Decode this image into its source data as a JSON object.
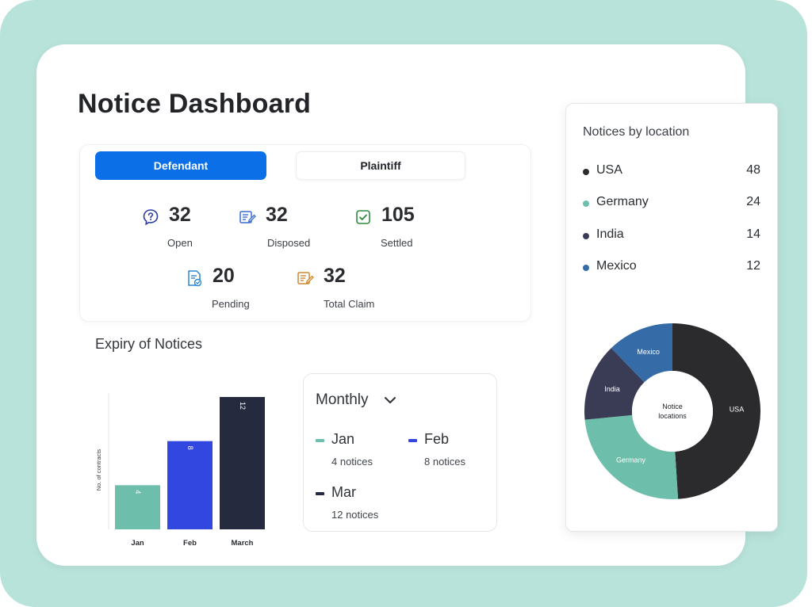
{
  "page": {
    "title": "Notice Dashboard"
  },
  "tabs": [
    {
      "label": "Defendant",
      "active": true
    },
    {
      "label": "Plaintiff",
      "active": false
    }
  ],
  "stats": [
    {
      "value": "32",
      "label": "Open",
      "icon": "question-bubble-icon",
      "color": "#2b3ea0"
    },
    {
      "value": "32",
      "label": "Disposed",
      "icon": "edit-document-icon",
      "color": "#3b6fd0"
    },
    {
      "value": "105",
      "label": "Settled",
      "icon": "check-square-icon",
      "color": "#2e8b3c"
    },
    {
      "value": "20",
      "label": "Pending",
      "icon": "document-check-icon",
      "color": "#2a86d1"
    },
    {
      "value": "32",
      "label": "Total Claim",
      "icon": "edit-note-icon",
      "color": "#d08a2e"
    }
  ],
  "expiry": {
    "title": "Expiry of Notices",
    "chart_data": {
      "type": "bar",
      "categories": [
        "Jan",
        "Feb",
        "March"
      ],
      "values": [
        4,
        8,
        12
      ],
      "data_labels": [
        "4",
        "8",
        "12"
      ],
      "ylabel": "No. of contracts",
      "ylim": [
        0,
        12.5
      ],
      "colors": [
        "#6dbeaa",
        "#3247e0",
        "#262a3f"
      ]
    }
  },
  "monthly": {
    "selector": "Monthly",
    "items": [
      {
        "name": "Jan",
        "count": "4 notices",
        "color": "#6dbeaa"
      },
      {
        "name": "Feb",
        "count": "8 notices",
        "color": "#3247e0"
      },
      {
        "name": "Mar",
        "count": "12 notices",
        "color": "#262a3f"
      }
    ]
  },
  "locations": {
    "title": "Notices by location",
    "items": [
      {
        "name": "USA",
        "value": "48",
        "color": "#2b2b2e"
      },
      {
        "name": "Germany",
        "value": "24",
        "color": "#6dbeaa"
      },
      {
        "name": "India",
        "value": "14",
        "color": "#3a3c55"
      },
      {
        "name": "Mexico",
        "value": "12",
        "color": "#356ba6"
      }
    ],
    "chart_data": {
      "type": "pie",
      "categories": [
        "USA",
        "Germany",
        "India",
        "Mexico"
      ],
      "values": [
        48,
        24,
        14,
        12
      ],
      "colors": [
        "#2b2b2e",
        "#6dbeaa",
        "#3a3c55",
        "#356ba6"
      ],
      "center_label": "Notice\nlocations"
    }
  }
}
